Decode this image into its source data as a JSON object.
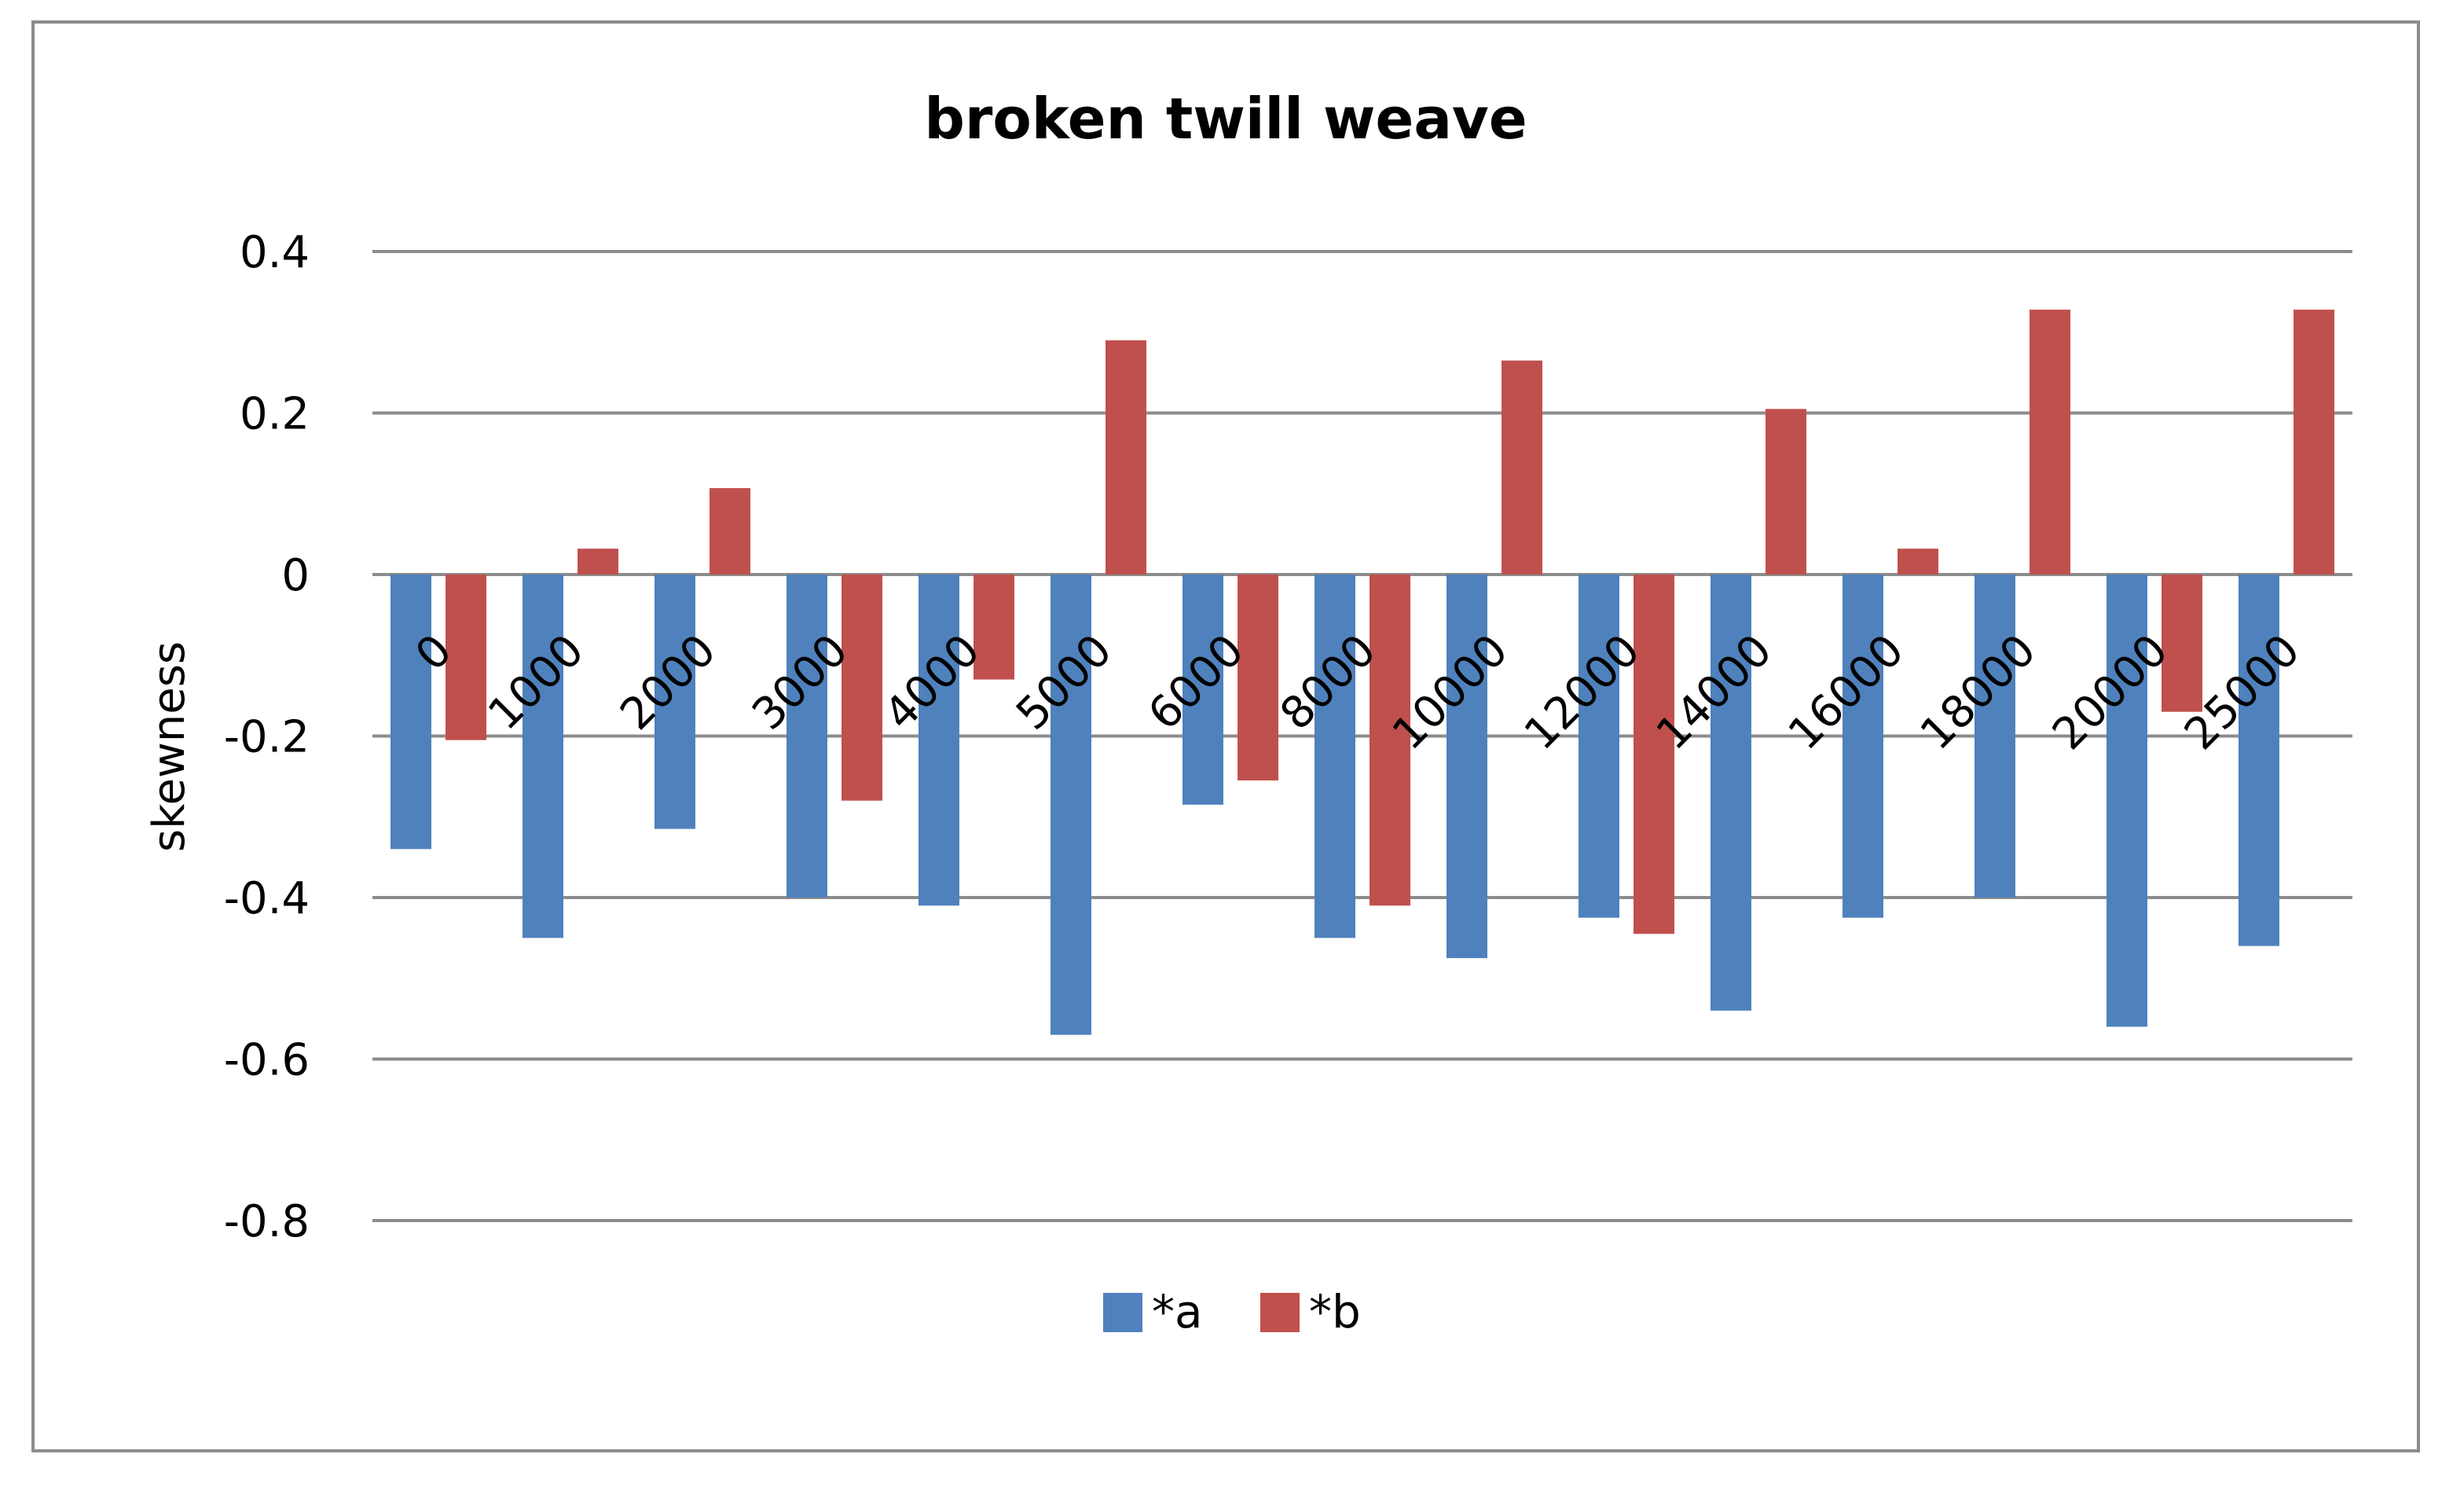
{
  "chart_data": {
    "type": "bar",
    "title": "broken twill  weave",
    "xlabel": "",
    "ylabel": "skewness",
    "ylim": [
      -0.8,
      0.4
    ],
    "yticks": [
      0.4,
      0.2,
      0,
      -0.2,
      -0.4,
      -0.6,
      -0.8
    ],
    "ytick_labels": [
      "0.4",
      "0.2",
      "0",
      "-0.2",
      "-0.4",
      "-0.6",
      "-0.8"
    ],
    "grid": true,
    "legend_position": "bottom",
    "categories": [
      "0",
      "1000",
      "2000",
      "3000",
      "4000",
      "5000",
      "6000",
      "8000",
      "10000",
      "12000",
      "14000",
      "16000",
      "18000",
      "20000",
      "25000"
    ],
    "series": [
      {
        "name": "*a",
        "color": "#4f81bd",
        "values": [
          -0.34,
          -0.45,
          -0.315,
          -0.4,
          -0.41,
          -0.57,
          -0.285,
          -0.45,
          -0.475,
          -0.425,
          -0.54,
          -0.425,
          -0.4,
          -0.56,
          -0.46
        ]
      },
      {
        "name": "*b",
        "color": "#c0504d",
        "values": [
          -0.205,
          0.032,
          0.107,
          -0.28,
          -0.13,
          0.29,
          -0.255,
          -0.41,
          0.265,
          -0.445,
          0.205,
          0.032,
          0.328,
          -0.17,
          0.328
        ]
      }
    ]
  }
}
